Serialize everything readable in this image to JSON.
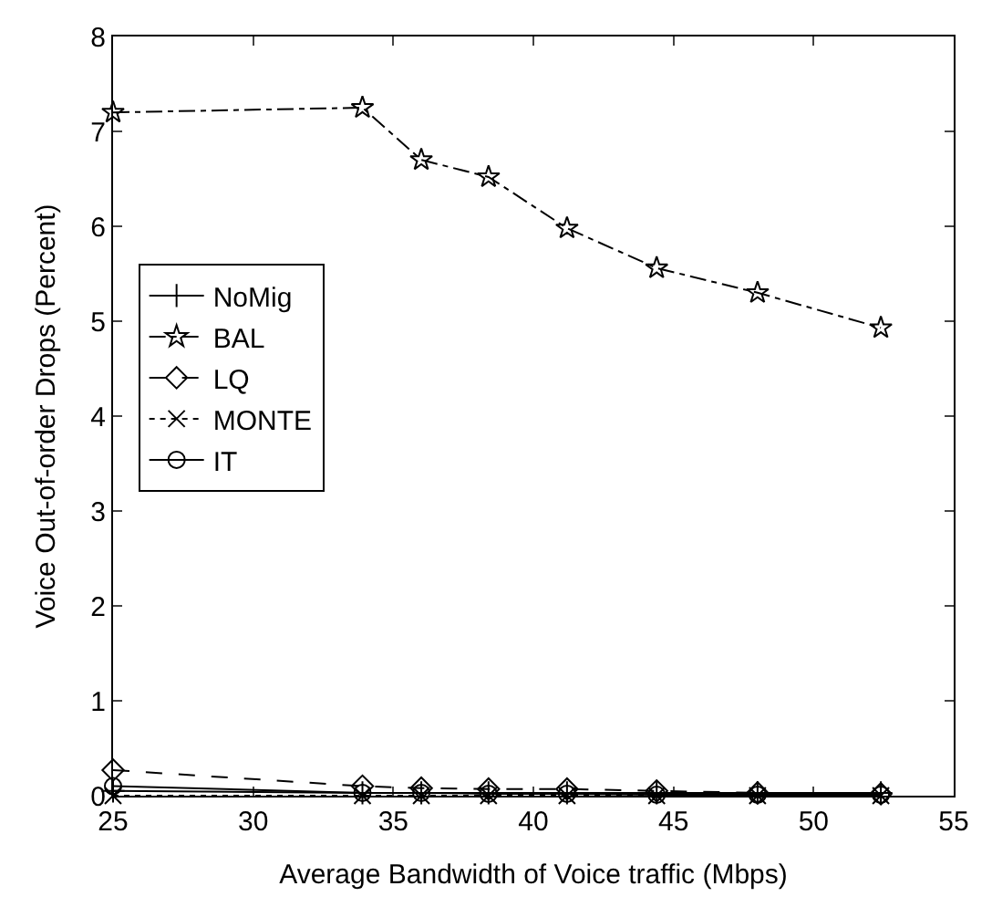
{
  "chart_data": {
    "type": "line",
    "xlabel": "Average Bandwidth of Voice traffic (Mbps)",
    "ylabel": "Voice Out-of-order Drops (Percent)",
    "x": [
      25,
      33.9,
      36,
      38.4,
      41.2,
      44.4,
      48,
      52.4
    ],
    "xlim": [
      25,
      55
    ],
    "xticks": [
      25,
      30,
      35,
      40,
      45,
      50,
      55
    ],
    "ylim": [
      0,
      8
    ],
    "yticks": [
      0,
      1,
      2,
      3,
      4,
      5,
      6,
      7,
      8
    ],
    "grid": false,
    "legend": "left",
    "series": [
      {
        "name": "NoMig",
        "color": "#000000",
        "marker": "cross",
        "line_style": "solid",
        "values": [
          0.05,
          0.03,
          0.03,
          0.03,
          0.03,
          0.03,
          0.03,
          0.03
        ]
      },
      {
        "name": "BAL",
        "color": "#000000",
        "marker": "star",
        "line_style": "dashdot",
        "values": [
          7.2,
          7.25,
          6.7,
          6.52,
          5.98,
          5.56,
          5.3,
          4.93
        ]
      },
      {
        "name": "LQ",
        "color": "#000000",
        "marker": "diamond",
        "line_style": "dashed",
        "values": [
          0.27,
          0.1,
          0.08,
          0.07,
          0.07,
          0.05,
          0.03,
          0.02
        ]
      },
      {
        "name": "MONTE",
        "color": "#000000",
        "marker": "x",
        "line_style": "dotted",
        "values": [
          0,
          0,
          0,
          0,
          0,
          0,
          0,
          0
        ]
      },
      {
        "name": "IT",
        "color": "#000000",
        "marker": "circle",
        "line_style": "solid",
        "values": [
          0.1,
          0.03,
          0.03,
          0.02,
          0.02,
          0.01,
          0.01,
          0.01
        ]
      }
    ]
  }
}
